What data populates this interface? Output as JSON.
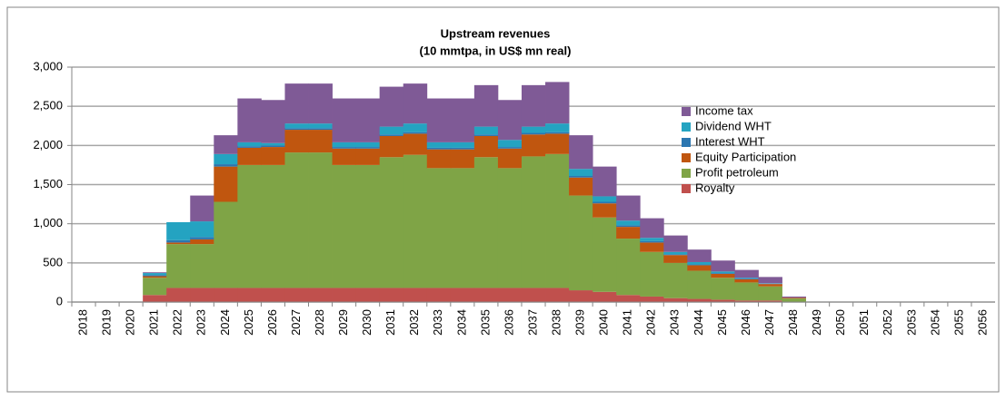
{
  "chart_data": {
    "type": "bar",
    "stacked": true,
    "title": "Upstream revenues",
    "subtitle": "(10 mmtpa, in US$ mn real)",
    "categories": [
      "2018",
      "2019",
      "2020",
      "2021",
      "2022",
      "2023",
      "2024",
      "2025",
      "2026",
      "2027",
      "2028",
      "2029",
      "2030",
      "2031",
      "2032",
      "2033",
      "2034",
      "2035",
      "2036",
      "2037",
      "2038",
      "2039",
      "2040",
      "2041",
      "2042",
      "2043",
      "2044",
      "2045",
      "2046",
      "2047",
      "2048",
      "2049",
      "2050",
      "2051",
      "2052",
      "2053",
      "2054",
      "2055",
      "2056"
    ],
    "series": [
      {
        "name": "Royalty",
        "color": "#c0504d",
        "values": [
          0,
          0,
          0,
          90,
          180,
          180,
          180,
          180,
          180,
          180,
          180,
          180,
          180,
          180,
          180,
          180,
          180,
          180,
          180,
          180,
          180,
          150,
          130,
          90,
          70,
          50,
          40,
          30,
          20,
          20,
          5,
          0,
          0,
          0,
          0,
          0,
          0,
          0,
          0
        ]
      },
      {
        "name": "Profit petroleum",
        "color": "#7fa446",
        "values": [
          0,
          0,
          0,
          220,
          560,
          560,
          1100,
          1570,
          1570,
          1730,
          1730,
          1570,
          1570,
          1670,
          1700,
          1530,
          1530,
          1670,
          1530,
          1680,
          1710,
          1210,
          950,
          720,
          570,
          450,
          360,
          280,
          230,
          180,
          40,
          0,
          0,
          0,
          0,
          0,
          0,
          0,
          0
        ]
      },
      {
        "name": "Equity Participation",
        "color": "#c0560f",
        "values": [
          0,
          0,
          0,
          20,
          20,
          60,
          450,
          220,
          230,
          290,
          290,
          210,
          210,
          270,
          270,
          240,
          240,
          270,
          250,
          280,
          260,
          230,
          180,
          150,
          120,
          100,
          70,
          50,
          40,
          30,
          10,
          0,
          0,
          0,
          0,
          0,
          0,
          0,
          0
        ]
      },
      {
        "name": "Interest WHT",
        "color": "#2b76b0",
        "values": [
          0,
          0,
          0,
          15,
          30,
          30,
          30,
          20,
          20,
          20,
          20,
          20,
          20,
          20,
          20,
          20,
          20,
          20,
          20,
          20,
          20,
          20,
          20,
          20,
          20,
          10,
          10,
          10,
          10,
          5,
          0,
          0,
          0,
          0,
          0,
          0,
          0,
          0,
          0
        ]
      },
      {
        "name": "Dividend WHT",
        "color": "#24a3c1",
        "values": [
          0,
          0,
          0,
          25,
          230,
          200,
          130,
          50,
          30,
          60,
          60,
          60,
          60,
          100,
          110,
          70,
          70,
          100,
          90,
          80,
          110,
          90,
          70,
          60,
          40,
          30,
          30,
          20,
          10,
          5,
          0,
          0,
          0,
          0,
          0,
          0,
          0,
          0,
          0
        ]
      },
      {
        "name": "Income tax",
        "color": "#7f5a96",
        "values": [
          0,
          0,
          0,
          10,
          0,
          330,
          240,
          560,
          550,
          510,
          510,
          560,
          560,
          510,
          510,
          560,
          560,
          530,
          510,
          530,
          530,
          430,
          380,
          320,
          250,
          210,
          160,
          140,
          100,
          80,
          15,
          0,
          0,
          0,
          0,
          0,
          0,
          0,
          0
        ]
      }
    ],
    "ylim": [
      0,
      3000
    ],
    "yticks": [
      0,
      500,
      {
        "value": 1000,
        "label": "1,000"
      },
      {
        "value": 1500,
        "label": "1,500"
      },
      {
        "value": 2000,
        "label": "2,000"
      },
      {
        "value": 2500,
        "label": "2,500"
      },
      {
        "value": 3000,
        "label": "3,000"
      }
    ],
    "grid": true,
    "legend": "upper right"
  }
}
